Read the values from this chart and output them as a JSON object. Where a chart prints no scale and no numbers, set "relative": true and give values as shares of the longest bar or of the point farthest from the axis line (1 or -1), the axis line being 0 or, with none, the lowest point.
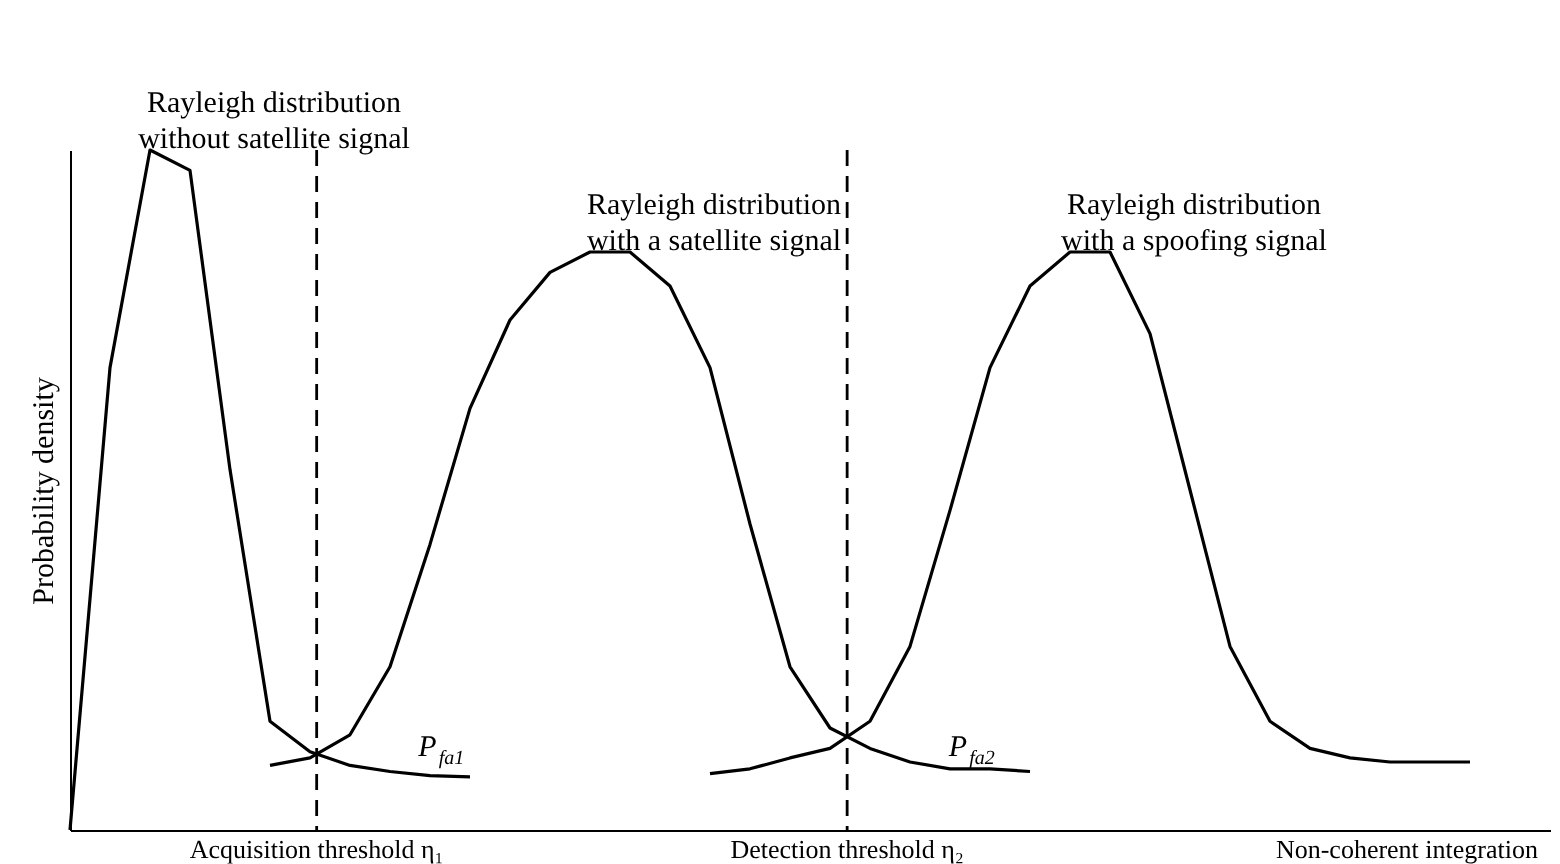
{
  "chart_data": {
    "type": "line",
    "relative": true,
    "ylabel": "Probability density",
    "xlabel": "Non-coherent integration",
    "legend": false,
    "grid": false,
    "marker": "none",
    "line_style": "solid",
    "categories": [
      null,
      null,
      null,
      null,
      null,
      null,
      null,
      null,
      null,
      null,
      null,
      null,
      null,
      null,
      null,
      null,
      null,
      null,
      null,
      null,
      null,
      null,
      null,
      null,
      null,
      null,
      null,
      null,
      null,
      null,
      null,
      null,
      null,
      null,
      null,
      null
    ],
    "series": [
      {
        "name": "Rayleigh distribution without satellite signal",
        "color": "#000000",
        "values": [
          0,
          0.68,
          1,
          0.97,
          0.53,
          0.16,
          0.115,
          0.095,
          0.086,
          0.08,
          0.078,
          null,
          null,
          null,
          null,
          null,
          null,
          null,
          null,
          null,
          null,
          null,
          null,
          null,
          null,
          null,
          null,
          null,
          null,
          null,
          null,
          null,
          null,
          null,
          null,
          null
        ]
      },
      {
        "name": "Rayleigh distribution with a satellite signal",
        "color": "#000000",
        "values": [
          null,
          null,
          null,
          null,
          null,
          0.095,
          0.106,
          0.14,
          0.24,
          0.42,
          0.62,
          0.75,
          0.82,
          0.85,
          0.85,
          0.8,
          0.68,
          0.45,
          0.24,
          0.15,
          0.12,
          0.1,
          0.09,
          0.09,
          0.086,
          null,
          null,
          null,
          null,
          null,
          null,
          null,
          null,
          null,
          null,
          null
        ]
      },
      {
        "name": "Rayleigh distribution with a spoofing signal",
        "color": "#000000",
        "values": [
          null,
          null,
          null,
          null,
          null,
          null,
          null,
          null,
          null,
          null,
          null,
          null,
          null,
          null,
          null,
          null,
          0.083,
          0.09,
          0.106,
          0.12,
          0.16,
          0.27,
          0.47,
          0.68,
          0.8,
          0.85,
          0.85,
          0.73,
          0.5,
          0.27,
          0.16,
          0.12,
          0.106,
          0.1,
          0.1,
          0.1
        ]
      }
    ],
    "ref_lines": [
      {
        "axis": "x",
        "label": "Acquisition threshold η₁",
        "line_style": "dashed",
        "color": "#000000"
      },
      {
        "axis": "x",
        "label": "Detection threshold η₂",
        "line_style": "dashed",
        "color": "#000000"
      }
    ],
    "annotations": [
      "P$_{fa1}$",
      "P$_{fa2}$"
    ]
  }
}
